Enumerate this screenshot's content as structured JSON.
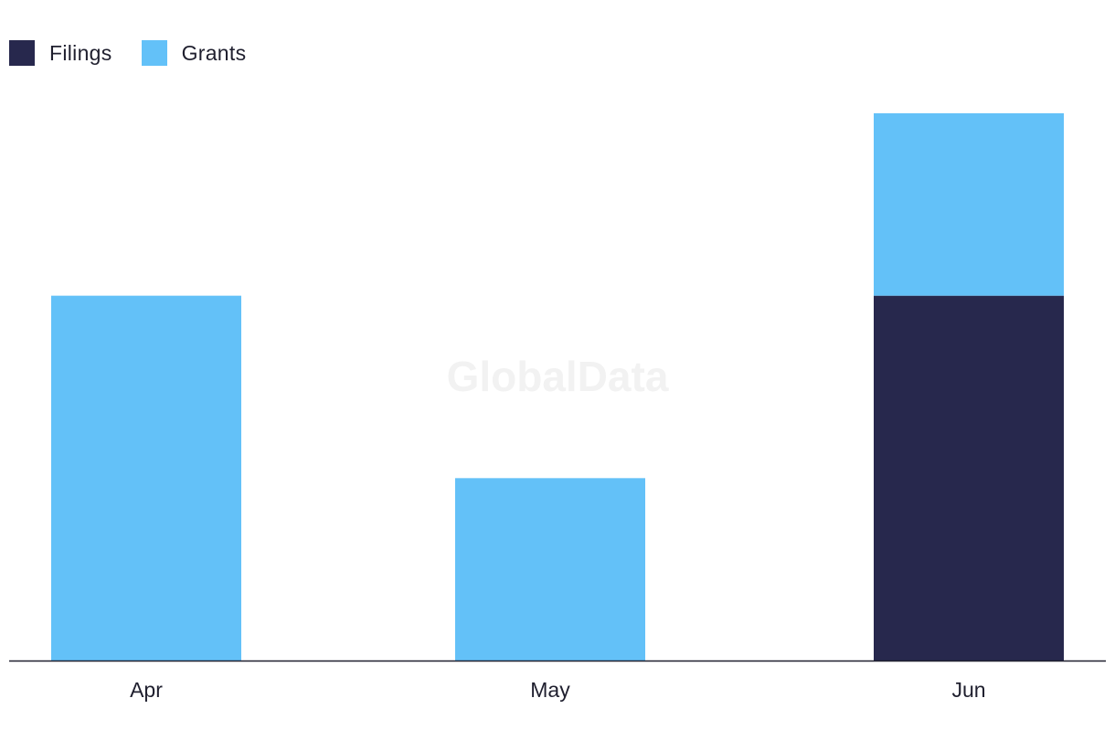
{
  "chart_data": {
    "type": "bar",
    "stacked": true,
    "categories": [
      "Apr",
      "May",
      "Jun"
    ],
    "series": [
      {
        "name": "Filings",
        "values": [
          0,
          0,
          2
        ],
        "color": "#27284d"
      },
      {
        "name": "Grants",
        "values": [
          2,
          1,
          1
        ],
        "color": "#63c1f8"
      }
    ],
    "ylim": [
      0,
      3
    ],
    "grid": false,
    "legend_position": "top-left",
    "watermark": "GlobalData"
  }
}
